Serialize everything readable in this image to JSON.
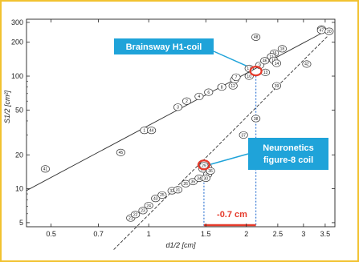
{
  "chart_data": {
    "type": "scatter",
    "xscale": "log",
    "yscale": "log",
    "xlim": [
      0.42,
      3.75
    ],
    "ylim": [
      4.6,
      320
    ],
    "xticks": [
      0.5,
      0.7,
      1,
      1.5,
      2,
      2.5,
      3,
      3.5
    ],
    "xtick_labels": [
      "0.5",
      "0.7",
      "1",
      "1.5",
      "2",
      "2.5",
      "3",
      "3.5"
    ],
    "yticks": [
      5,
      10,
      20,
      50,
      100,
      200,
      300
    ],
    "ytick_labels": [
      "5",
      "10",
      "20",
      "50",
      "100",
      "200",
      "300"
    ],
    "xlabel": "d1/2 [cm]",
    "ylabel": "S1/2 [cm²]",
    "grid": false,
    "series": [
      {
        "style": "solid",
        "points": [
          {
            "label": "41",
            "x": 0.48,
            "y": 15
          },
          {
            "label": "45",
            "x": 0.82,
            "y": 21
          },
          {
            "label": "1",
            "x": 0.97,
            "y": 33
          },
          {
            "label": "44",
            "x": 1.02,
            "y": 33
          },
          {
            "label": "3",
            "x": 1.23,
            "y": 53
          },
          {
            "label": "2",
            "x": 1.31,
            "y": 60
          },
          {
            "label": "4",
            "x": 1.43,
            "y": 66
          },
          {
            "label": "6",
            "x": 1.53,
            "y": 72
          },
          {
            "label": "8",
            "x": 1.68,
            "y": 80
          },
          {
            "label": "12",
            "x": 1.82,
            "y": 82
          },
          {
            "label": "5",
            "x": 1.84,
            "y": 93
          },
          {
            "label": "7",
            "x": 1.86,
            "y": 98
          },
          {
            "label": "17",
            "x": 2.04,
            "y": 117
          },
          {
            "label": "10",
            "x": 2.04,
            "y": 100
          },
          {
            "label": "9",
            "x": 2.2,
            "y": 125
          },
          {
            "label": "46",
            "x": 2.28,
            "y": 137
          },
          {
            "label": "16",
            "x": 2.44,
            "y": 160
          },
          {
            "label": "11",
            "x": 2.39,
            "y": 149
          },
          {
            "label": "18",
            "x": 2.58,
            "y": 175
          },
          {
            "label": "19",
            "x": 2.43,
            "y": 138
          },
          {
            "label": "14",
            "x": 2.48,
            "y": 130
          },
          {
            "label": "13",
            "x": 2.29,
            "y": 108
          },
          {
            "label": "40",
            "x": 3.41,
            "y": 262
          }
        ]
      },
      {
        "style": "dashed",
        "points": [
          {
            "label": "48",
            "x": 2.14,
            "y": 222
          },
          {
            "label": "21",
            "x": 0.88,
            "y": 5.5
          },
          {
            "label": "22",
            "x": 0.91,
            "y": 5.9
          },
          {
            "label": "23",
            "x": 0.96,
            "y": 6.4
          },
          {
            "label": "24",
            "x": 1.0,
            "y": 7.1
          },
          {
            "label": "43",
            "x": 1.05,
            "y": 8.2
          },
          {
            "label": "25",
            "x": 1.1,
            "y": 8.8
          },
          {
            "label": "32",
            "x": 1.18,
            "y": 9.6
          },
          {
            "label": "31",
            "x": 1.23,
            "y": 9.8
          },
          {
            "label": "26",
            "x": 1.3,
            "y": 11.1
          },
          {
            "label": "35",
            "x": 1.37,
            "y": 11.6
          },
          {
            "label": "34",
            "x": 1.43,
            "y": 12.4
          },
          {
            "label": "28",
            "x": 1.47,
            "y": 15
          },
          {
            "label": "27",
            "x": 1.52,
            "y": 13.4
          },
          {
            "label": "30",
            "x": 1.5,
            "y": 12.4
          },
          {
            "label": "33",
            "x": 1.52,
            "y": 15.5
          },
          {
            "label": "29",
            "x": 1.48,
            "y": 16.1
          },
          {
            "label": "36",
            "x": 1.55,
            "y": 14.4
          },
          {
            "label": "37",
            "x": 1.96,
            "y": 30
          },
          {
            "label": "38",
            "x": 2.14,
            "y": 42
          },
          {
            "label": "39",
            "x": 2.48,
            "y": 82
          },
          {
            "label": "42",
            "x": 3.07,
            "y": 128
          },
          {
            "label": "47",
            "x": 3.41,
            "y": 255
          },
          {
            "label": "20",
            "x": 3.6,
            "y": 250
          }
        ]
      }
    ],
    "highlights": [
      {
        "name": "Brainsway H1-coil",
        "x": 2.14,
        "y": 111
      },
      {
        "name": "Neuronetics figure-8 coil",
        "x": 1.48,
        "y": 16.3
      }
    ],
    "annotations": [
      {
        "text": "Brainsway H1-coil"
      },
      {
        "text": "Neuronetics figure-8 coil",
        "lines": [
          "Neuronetics",
          "figure-8 coil"
        ]
      },
      {
        "text": "-0.7 cm"
      }
    ]
  },
  "colors": {
    "accent": "#1fa3d9",
    "highlight": "#e53a2b",
    "guide": "#3a7bd5",
    "border": "#f2c230"
  }
}
